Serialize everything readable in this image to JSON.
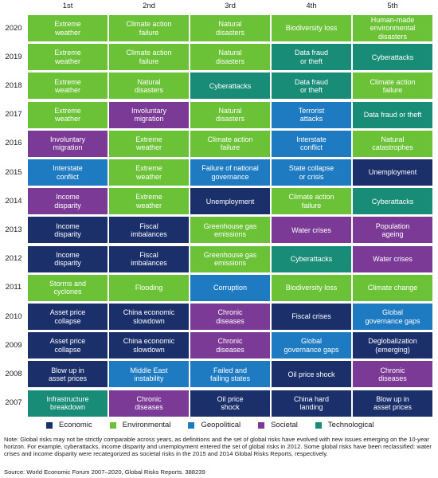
{
  "chart_data": {
    "type": "table",
    "columns": [
      "1st",
      "2nd",
      "3rd",
      "4th",
      "5th"
    ],
    "rows": [
      {
        "year": "2020",
        "cells": [
          {
            "text": "Extreme\nweather",
            "cat": "env"
          },
          {
            "text": "Climate action\nfailure",
            "cat": "env"
          },
          {
            "text": "Natural\ndisasters",
            "cat": "env"
          },
          {
            "text": "Biodiversity loss",
            "cat": "env"
          },
          {
            "text": "Human-made\nenvironmental\ndisasters",
            "cat": "env"
          }
        ]
      },
      {
        "year": "2019",
        "cells": [
          {
            "text": "Extreme\nweather",
            "cat": "env"
          },
          {
            "text": "Climate action\nfailure",
            "cat": "env"
          },
          {
            "text": "Natural\ndisasters",
            "cat": "env"
          },
          {
            "text": "Data fraud\nor theft",
            "cat": "tech"
          },
          {
            "text": "Cyberattacks",
            "cat": "tech"
          }
        ]
      },
      {
        "year": "2018",
        "cells": [
          {
            "text": "Extreme\nweather",
            "cat": "env"
          },
          {
            "text": "Natural\ndisasters",
            "cat": "env"
          },
          {
            "text": "Cyberattacks",
            "cat": "tech"
          },
          {
            "text": "Data fraud\nor theft",
            "cat": "tech"
          },
          {
            "text": "Climate action\nfailure",
            "cat": "env"
          }
        ]
      },
      {
        "year": "2017",
        "cells": [
          {
            "text": "Extreme\nweather",
            "cat": "env"
          },
          {
            "text": "Involuntary\nmigration",
            "cat": "soc"
          },
          {
            "text": "Natural\ndisasters",
            "cat": "env"
          },
          {
            "text": "Terrorist\nattacks",
            "cat": "geo"
          },
          {
            "text": "Data fraud or theft",
            "cat": "tech"
          }
        ]
      },
      {
        "year": "2016",
        "cells": [
          {
            "text": "Involuntary\nmigration",
            "cat": "soc"
          },
          {
            "text": "Extreme\nweather",
            "cat": "env"
          },
          {
            "text": "Climate action\nfailure",
            "cat": "env"
          },
          {
            "text": "Interstate\nconflict",
            "cat": "geo"
          },
          {
            "text": "Natural\ncatastrophes",
            "cat": "env"
          }
        ]
      },
      {
        "year": "2015",
        "cells": [
          {
            "text": "Interstate\nconflict",
            "cat": "geo"
          },
          {
            "text": "Extreme\nweather",
            "cat": "env"
          },
          {
            "text": "Failure of national\ngovernance",
            "cat": "geo"
          },
          {
            "text": "State collapse\nor crisis",
            "cat": "geo"
          },
          {
            "text": "Unemployment",
            "cat": "eco"
          }
        ]
      },
      {
        "year": "2014",
        "cells": [
          {
            "text": "Income\ndisparity",
            "cat": "soc"
          },
          {
            "text": "Extreme\nweather",
            "cat": "env"
          },
          {
            "text": "Unemployment",
            "cat": "eco"
          },
          {
            "text": "Climate action\nfailure",
            "cat": "env"
          },
          {
            "text": "Cyberattacks",
            "cat": "tech"
          }
        ]
      },
      {
        "year": "2013",
        "cells": [
          {
            "text": "Income\ndisparity",
            "cat": "eco"
          },
          {
            "text": "Fiscal\nimbalances",
            "cat": "eco"
          },
          {
            "text": "Greenhouse gas\nemissions",
            "cat": "env"
          },
          {
            "text": "Water crises",
            "cat": "soc"
          },
          {
            "text": "Population\nageing",
            "cat": "soc"
          }
        ]
      },
      {
        "year": "2012",
        "cells": [
          {
            "text": "Income\ndisparity",
            "cat": "eco"
          },
          {
            "text": "Fiscal\nimbalances",
            "cat": "eco"
          },
          {
            "text": "Greenhouse gas\nemissions",
            "cat": "env"
          },
          {
            "text": "Cyberattacks",
            "cat": "tech"
          },
          {
            "text": "Water crises",
            "cat": "soc"
          }
        ]
      },
      {
        "year": "2011",
        "cells": [
          {
            "text": "Storms and\ncyclones",
            "cat": "env"
          },
          {
            "text": "Flooding",
            "cat": "env"
          },
          {
            "text": "Corruption",
            "cat": "geo"
          },
          {
            "text": "Biodiversity loss",
            "cat": "env"
          },
          {
            "text": "Climate change",
            "cat": "env"
          }
        ]
      },
      {
        "year": "2010",
        "cells": [
          {
            "text": "Asset price\ncollapse",
            "cat": "eco"
          },
          {
            "text": "China economic\nslowdown",
            "cat": "eco"
          },
          {
            "text": "Chronic\ndiseases",
            "cat": "soc"
          },
          {
            "text": "Fiscal crises",
            "cat": "eco"
          },
          {
            "text": "Global\ngovernance gaps",
            "cat": "geo"
          }
        ]
      },
      {
        "year": "2009",
        "cells": [
          {
            "text": "Asset price\ncollapse",
            "cat": "eco"
          },
          {
            "text": "China economic\nslowdown",
            "cat": "eco"
          },
          {
            "text": "Chronic\ndiseases",
            "cat": "soc"
          },
          {
            "text": "Global\ngovernance gaps",
            "cat": "geo"
          },
          {
            "text": "Deglobalization\n(emerging)",
            "cat": "eco"
          }
        ]
      },
      {
        "year": "2008",
        "cells": [
          {
            "text": "Blow up in\nasset prices",
            "cat": "eco"
          },
          {
            "text": "Middle East\ninstability",
            "cat": "geo"
          },
          {
            "text": "Failed and\nfailing states",
            "cat": "geo"
          },
          {
            "text": "Oil price shock",
            "cat": "eco"
          },
          {
            "text": "Chronic\ndiseases",
            "cat": "soc"
          }
        ]
      },
      {
        "year": "2007",
        "cells": [
          {
            "text": "Infrastructure\nbreakdown",
            "cat": "tech"
          },
          {
            "text": "Chronic\ndiseases",
            "cat": "soc"
          },
          {
            "text": "Oil price\nshock",
            "cat": "eco"
          },
          {
            "text": "China hard\nlanding",
            "cat": "eco"
          },
          {
            "text": "Blow up in\nasset prices",
            "cat": "eco"
          }
        ]
      }
    ],
    "categories": [
      {
        "key": "eco",
        "label": "Economic",
        "color": "#1b2f6b"
      },
      {
        "key": "env",
        "label": "Environmental",
        "color": "#6bc236"
      },
      {
        "key": "geo",
        "label": "Geopolitical",
        "color": "#1e7bc2"
      },
      {
        "key": "soc",
        "label": "Societal",
        "color": "#7b3a96"
      },
      {
        "key": "tech",
        "label": "Technological",
        "color": "#198c77"
      }
    ]
  },
  "note": "Note: Global risks may not be strictly comparable across years, as definitions and the set of global risks have evolved with new issues emerging on the 10-year horizon. For example, cyberattacks, income disparity and unemployment entered the set of global risks in 2012. Some global risks have been reclassified: water crises and income disparity were recategorized as societal risks in the 2015 and 2014 Global Risks Reports, respectively.",
  "source": "Source: World Economic Forum 2007–2020, Global Risks Reports. 388239"
}
